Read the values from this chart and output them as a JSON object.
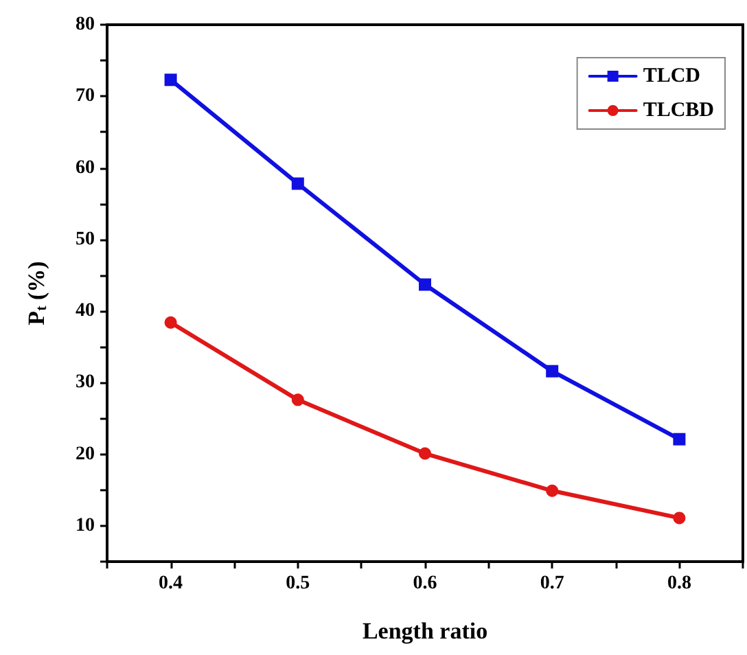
{
  "chart_data": {
    "type": "line",
    "xlabel": "Length ratio",
    "ylabel": "P$_{t}$ (%)",
    "x": [
      0.4,
      0.5,
      0.6,
      0.7,
      0.8
    ],
    "series": [
      {
        "name": "TLCD",
        "color": "#1010e0",
        "marker": "square",
        "values": [
          72.3,
          57.8,
          43.7,
          31.6,
          22.1
        ]
      },
      {
        "name": "TLCBD",
        "color": "#e01818",
        "marker": "circle",
        "values": [
          38.4,
          27.6,
          20.1,
          14.9,
          11.1
        ]
      }
    ],
    "xlim": [
      0.35,
      0.85
    ],
    "xticks": [
      {
        "value": 0.35,
        "label": null
      },
      0.4,
      {
        "value": 0.45,
        "label": null
      },
      0.5,
      {
        "value": 0.55,
        "label": null
      },
      0.6,
      {
        "value": 0.65,
        "label": null
      },
      0.7,
      {
        "value": 0.75,
        "label": null
      },
      0.8,
      {
        "value": 0.85,
        "label": null
      }
    ],
    "ylim": [
      5,
      80
    ],
    "yticks": [
      {
        "value": 5,
        "label": null
      },
      10,
      {
        "value": 15,
        "label": null
      },
      20,
      {
        "value": 25,
        "label": null
      },
      30,
      {
        "value": 35,
        "label": null
      },
      40,
      {
        "value": 45,
        "label": null
      },
      50,
      {
        "value": 55,
        "label": null
      },
      60,
      {
        "value": 65,
        "label": null
      },
      70,
      {
        "value": 75,
        "label": null
      },
      80
    ],
    "grid": false,
    "legend": "top right",
    "line_style": "solid"
  }
}
